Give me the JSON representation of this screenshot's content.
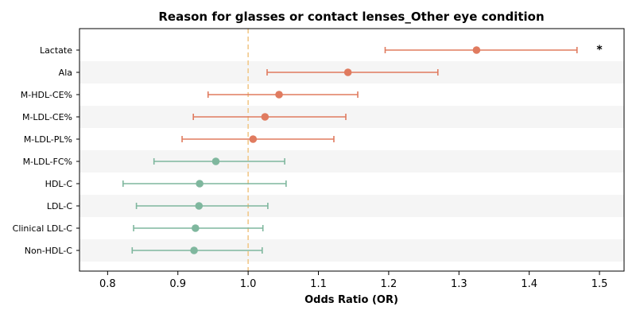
{
  "chart_data": {
    "type": "forest",
    "title": "Reason for glasses or contact lenses_Other eye condition",
    "xlabel": "Odds Ratio (OR)",
    "xlim": [
      0.76,
      1.535
    ],
    "xticks": [
      0.8,
      0.9,
      1.0,
      1.1,
      1.2,
      1.3,
      1.4,
      1.5
    ],
    "xtick_labels": [
      "0.8",
      "0.9",
      "1.0",
      "1.1",
      "1.2",
      "1.3",
      "1.4",
      "1.5"
    ],
    "reference_line": 1.0,
    "colors": {
      "positive": "#e07b5f",
      "negative": "#7fb79e",
      "reference": "#f2c98a",
      "band": "#f5f5f5"
    },
    "rows": [
      {
        "label": "Lactate",
        "or": 1.325,
        "lower": 1.195,
        "upper": 1.468,
        "direction": "positive",
        "annotation": "*"
      },
      {
        "label": "Ala",
        "or": 1.142,
        "lower": 1.027,
        "upper": 1.27,
        "direction": "positive",
        "annotation": ""
      },
      {
        "label": "M-HDL-CE%",
        "or": 1.044,
        "lower": 0.943,
        "upper": 1.156,
        "direction": "positive",
        "annotation": ""
      },
      {
        "label": "M-LDL-CE%",
        "or": 1.024,
        "lower": 0.922,
        "upper": 1.139,
        "direction": "positive",
        "annotation": ""
      },
      {
        "label": "M-LDL-PL%",
        "or": 1.007,
        "lower": 0.906,
        "upper": 1.122,
        "direction": "positive",
        "annotation": ""
      },
      {
        "label": "M-LDL-FC%",
        "or": 0.954,
        "lower": 0.866,
        "upper": 1.052,
        "direction": "negative",
        "annotation": ""
      },
      {
        "label": "HDL-C",
        "or": 0.931,
        "lower": 0.822,
        "upper": 1.054,
        "direction": "negative",
        "annotation": ""
      },
      {
        "label": "LDL-C",
        "or": 0.93,
        "lower": 0.841,
        "upper": 1.028,
        "direction": "negative",
        "annotation": ""
      },
      {
        "label": "Clinical LDL-C",
        "or": 0.925,
        "lower": 0.837,
        "upper": 1.021,
        "direction": "negative",
        "annotation": ""
      },
      {
        "label": "Non-HDL-C",
        "or": 0.923,
        "lower": 0.835,
        "upper": 1.02,
        "direction": "negative",
        "annotation": ""
      }
    ]
  }
}
